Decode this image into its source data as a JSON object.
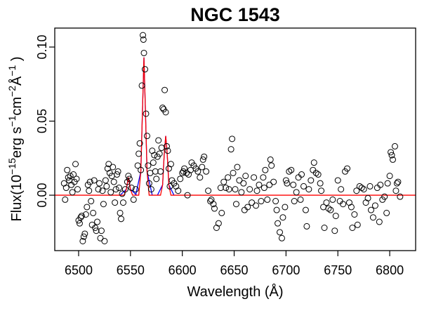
{
  "chart_data": {
    "type": "scatter",
    "title": "NGC 1543",
    "x_label": "Wavelength (Å)",
    "y_label": [
      {
        "text": "Flux(10"
      },
      {
        "text": "−15",
        "sup": true
      },
      {
        "text": "erg s"
      },
      {
        "text": "−1",
        "sup": true
      },
      {
        "text": "cm"
      },
      {
        "text": "−2",
        "sup": true
      },
      {
        "text": "Å"
      },
      {
        "text": "−1",
        "sup": true
      },
      {
        "text": " )"
      }
    ],
    "xlim": [
      6477,
      6825
    ],
    "ylim": [
      -0.0374,
      0.1128
    ],
    "xticks": [
      6500,
      6550,
      6600,
      6650,
      6700,
      6750,
      6800
    ],
    "yticks": [
      {
        "value": 0,
        "label": "0.00"
      },
      {
        "value": 0.05,
        "label": "0.05"
      },
      {
        "value": 0.1,
        "label": "0.10"
      }
    ],
    "series": [
      {
        "style": "line",
        "color": "#0000ff",
        "x": [
          6540,
          6546,
          6548,
          6550,
          6556,
          6556,
          6555,
          6560,
          6561.5,
          6563,
          6564.5,
          6566,
          6571,
          6571,
          6576,
          6581,
          6582.5,
          6584,
          6585.5,
          6587,
          6592
        ],
        "values": [
          0,
          0.004,
          0.012,
          0.004,
          0,
          null,
          0,
          0.016,
          0.055,
          0.093,
          0.055,
          0.016,
          0,
          null,
          0,
          0.007,
          0.027,
          0.04,
          0.027,
          0.007,
          0
        ]
      },
      {
        "style": "line",
        "color": "#ff0000",
        "x": [
          6477,
          6544,
          6546,
          6548,
          6550,
          6552,
          6558,
          6560,
          6561.5,
          6563,
          6564.5,
          6566,
          6568,
          6579,
          6581,
          6582.5,
          6584,
          6585.5,
          6587,
          6589,
          6825
        ],
        "values": [
          0,
          0,
          0.004,
          0.012,
          0.004,
          0,
          0,
          0.016,
          0.055,
          0.093,
          0.055,
          0.016,
          0,
          0,
          0.007,
          0.027,
          0.04,
          0.027,
          0.007,
          0,
          0
        ]
      },
      {
        "style": "points",
        "color": "#000000",
        "x": [
          6486,
          6487,
          6488,
          6489,
          6490,
          6491,
          6492,
          6493,
          6494,
          6495,
          6496,
          6497,
          6498,
          6499,
          6500,
          6501,
          6502,
          6503,
          6504,
          6505,
          6506,
          6507,
          6508,
          6509,
          6510,
          6511,
          6512,
          6513,
          6514,
          6515,
          6516,
          6517,
          6518,
          6519,
          6520,
          6521,
          6522,
          6523,
          6524,
          6525,
          6526,
          6527,
          6528,
          6529,
          6530,
          6531,
          6532,
          6533,
          6534,
          6535,
          6536,
          6537,
          6538,
          6539,
          6540,
          6541,
          6542,
          6543,
          6545,
          6547,
          6548,
          6549,
          6551,
          6553,
          6555,
          6557,
          6558,
          6559,
          6560,
          6561,
          6562,
          6562.5,
          6563,
          6564,
          6565,
          6566,
          6567,
          6568,
          6569,
          6570,
          6571,
          6572,
          6573,
          6574,
          6575,
          6576,
          6577,
          6578,
          6579,
          6580,
          6581,
          6582,
          6583,
          6584,
          6585,
          6586,
          6587,
          6588,
          6589,
          6590,
          6592,
          6594,
          6596,
          6598,
          6600,
          6601,
          6602,
          6604,
          6605,
          6606,
          6608,
          6609,
          6611,
          6613,
          6615,
          6617,
          6619,
          6620,
          6621,
          6623,
          6625,
          6627,
          6628,
          6630,
          6631,
          6633,
          6635,
          6637,
          6638,
          6640,
          6642,
          6644,
          6645,
          6647,
          6648,
          6649,
          6651,
          6652,
          6653,
          6655,
          6657,
          6659,
          6660,
          6661,
          6663,
          6665,
          6667,
          6669,
          6671,
          6672,
          6674,
          6676,
          6678,
          6679,
          6680,
          6682,
          6684,
          6685,
          6686,
          6688,
          6690,
          6691,
          6692,
          6694,
          6696,
          6697,
          6699,
          6700,
          6701,
          6703,
          6705,
          6707,
          6708,
          6710,
          6712,
          6714,
          6715,
          6717,
          6719,
          6720,
          6722,
          6724,
          6726,
          6727,
          6729,
          6731,
          6733,
          6734,
          6736,
          6737,
          6739,
          6741,
          6743,
          6745,
          6747,
          6748,
          6750,
          6752,
          6753,
          6755,
          6757,
          6759,
          6761,
          6763,
          6764,
          6766,
          6768,
          6769,
          6771,
          6773,
          6775,
          6777,
          6779,
          6781,
          6782,
          6784,
          6786,
          6788,
          6790,
          6791,
          6793,
          6795,
          6797,
          6798,
          6800,
          6801,
          6802,
          6803,
          6805,
          6806,
          6807,
          6808,
          6810
        ],
        "values": [
          0.008,
          -0.003,
          0.005,
          0.017,
          0.012,
          0.01,
          0.013,
          0.007,
          0.002,
          0.014,
          0.009,
          0.021,
          0.011,
          0.004,
          -0.017,
          -0.019,
          -0.015,
          -0.014,
          -0.031,
          -0.028,
          -0.026,
          -0.013,
          -0.008,
          0.007,
          0.003,
          0.009,
          -0.004,
          -0.02,
          -0.012,
          0.01,
          -0.022,
          -0.024,
          -0.018,
          0.004,
          0.008,
          -0.029,
          -0.024,
          0.003,
          -0.006,
          -0.031,
          0.01,
          0.006,
          0.018,
          0.021,
          0.015,
          0.002,
          0.013,
          0.019,
          0.009,
          -0.005,
          0.004,
          0.014,
          0.016,
          0.005,
          -0.012,
          -0.016,
          0.001,
          -0.005,
          0.004,
          0.009,
          0.013,
          0.011,
          0.005,
          -0.003,
          0.004,
          0.02,
          0.028,
          0.035,
          0.017,
          0.074,
          0.108,
          0.105,
          0.096,
          0.085,
          0.055,
          0.04,
          0.02,
          0.008,
          0.015,
          0.004,
          0.03,
          0.022,
          0.027,
          0.016,
          0.011,
          0.026,
          0.037,
          0.028,
          0.016,
          0.032,
          0.059,
          0.058,
          0.071,
          0.056,
          0.033,
          0.03,
          0.018,
          0.006,
          0.021,
          0.01,
          0.008,
          0.006,
          0.003,
          0.011,
          0.015,
          0.016,
          0.018,
          0.015,
          0.0,
          0.014,
          0.017,
          0.022,
          0.02,
          0.018,
          0.016,
          0.012,
          0.019,
          0.024,
          0.026,
          0.016,
          0.003,
          -0.004,
          -0.003,
          -0.006,
          -0.009,
          -0.022,
          -0.019,
          0.005,
          -0.012,
          0.009,
          0.005,
          0.012,
          0.004,
          0.031,
          0.038,
          0.015,
          0.004,
          -0.006,
          0.019,
          0.01,
          0.002,
          0.008,
          -0.01,
          0.013,
          -0.008,
          0.004,
          -0.005,
          0.012,
          -0.007,
          0.003,
          0.007,
          -0.004,
          0.012,
          0.005,
          0.017,
          -0.003,
          0.007,
          0.024,
          0.02,
          0.009,
          -0.004,
          -0.01,
          -0.019,
          -0.025,
          -0.029,
          -0.015,
          -0.008,
          0.01,
          0.008,
          0.016,
          0.017,
          0.007,
          -0.004,
          0.002,
          0.012,
          -0.003,
          0.014,
          0.006,
          -0.01,
          -0.021,
          0.004,
          0.01,
          0.017,
          0.022,
          0.015,
          0.014,
          0.008,
          0.003,
          -0.008,
          -0.022,
          -0.005,
          -0.009,
          -0.01,
          -0.003,
          -0.024,
          -0.014,
          0.01,
          -0.004,
          0.004,
          -0.006,
          0.016,
          0.018,
          -0.005,
          -0.008,
          -0.022,
          -0.013,
          0.003,
          -0.02,
          0.006,
          0.005,
          0.004,
          -0.005,
          -0.002,
          0.006,
          -0.01,
          -0.015,
          -0.007,
          0.005,
          -0.018,
          0.007,
          -0.003,
          -0.001,
          -0.012,
          0.008,
          0.013,
          0.029,
          0.027,
          0.024,
          0.033,
          0.003,
          0.008,
          0.009,
          -0.001
        ]
      }
    ]
  }
}
